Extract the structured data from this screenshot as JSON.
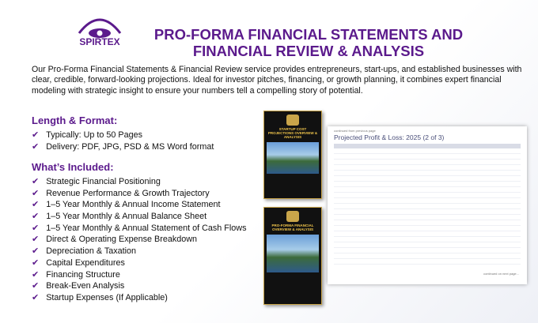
{
  "logo": {
    "name": "SPIRTEX"
  },
  "header": {
    "title": [
      "PRO-FORMA FINANCIAL STATEMENTS AND",
      "FINANCIAL REVIEW & ANALYSIS"
    ]
  },
  "intro": "Our Pro-Forma Financial Statements & Financial Review service provides entrepreneurs, start-ups, and established businesses with clear, credible, forward-looking projections. Ideal for investor pitches, financing, or growth planning, it combines expert financial modeling with strategic insight to ensure your numbers tell a compelling story of potential.",
  "length_format": {
    "heading": "Length & Format:",
    "items": [
      "Typically: Up to 50 Pages",
      "Delivery: PDF, JPG, PSD & MS Word format"
    ]
  },
  "included": {
    "heading": "What’s Included:",
    "items": [
      "Strategic Financial Positioning",
      "Revenue Performance & Growth Trajectory",
      "1–5 Year Monthly & Annual Income Statement",
      "1–5 Year Monthly & Annual Balance Sheet",
      "1–5 Year Monthly & Annual Statement of Cash Flows",
      "Direct & Operating Expense Breakdown",
      "Depreciation & Taxation",
      "Capital Expenditures",
      "Financing Structure",
      "Break-Even Analysis",
      "Startup Expenses (If Applicable)"
    ]
  },
  "covers": [
    {
      "title": "STARTUP COST PROJECTIONS OVERVIEW & ANALYSIS"
    },
    {
      "title": "PRO-FORMA FINANCIAL OVERVIEW & ANALYSIS"
    }
  ],
  "sheet": {
    "top_note": "continued from previous page",
    "title": "Projected Profit & Loss: 2025 (2 of 3)",
    "bottom_note": "continued on next page..."
  }
}
